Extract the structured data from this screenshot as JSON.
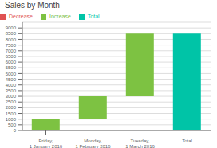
{
  "chart_data": {
    "type": "waterfall",
    "title": "Sales by Month",
    "categories": [
      "Friday, 1 January 2016",
      "Monday, 1 February 2016",
      "Tuesday, 1 March 2016",
      "Total"
    ],
    "bottoms": [
      0,
      1000,
      3000,
      0
    ],
    "series": [
      {
        "name": "Increase",
        "color": "#7DC242",
        "values": [
          1000,
          2000,
          5500,
          null
        ]
      },
      {
        "name": "Decrease",
        "color": "#E05252",
        "values": [
          null,
          null,
          null,
          null
        ]
      },
      {
        "name": "Total",
        "color": "#00C4A7",
        "values": [
          null,
          null,
          null,
          8500
        ]
      }
    ],
    "ylim": [
      0,
      9500
    ],
    "yticks": [
      0,
      500,
      1000,
      1500,
      2000,
      2500,
      3000,
      3500,
      4000,
      4500,
      5000,
      5500,
      6000,
      6500,
      7000,
      7500,
      8000,
      8500,
      9000
    ],
    "grid": true,
    "legend": "upper left"
  }
}
